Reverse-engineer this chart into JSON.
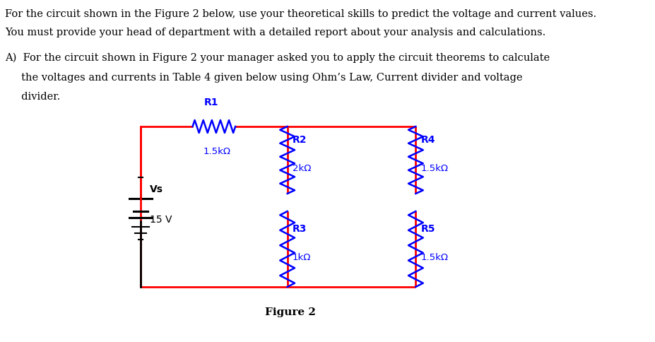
{
  "title_text": "Figure 2",
  "paragraph1": "For the circuit shown in the Figure 2 below, use your theoretical skills to predict the voltage and current values.",
  "paragraph2": "You must provide your head of department with a detailed report about your analysis and calculations.",
  "bullet_line1": "A)  For the circuit shown in Figure 2 your manager asked you to apply the circuit theorems to calculate",
  "bullet_line2": "     the voltages and currents in Table 4 given below using Ohm’s Law, Current divider and voltage",
  "bullet_line3": "     divider.",
  "R1_label": "R1",
  "R1_value": "1.5kΩ",
  "R2_label": "R2",
  "R2_value": "2kΩ",
  "R3_label": "R3",
  "R3_value": "1kΩ",
  "R4_label": "R4",
  "R4_value": "1.5kΩ",
  "R5_label": "R5",
  "R5_value": "1.5kΩ",
  "Vs_label": "Vs",
  "Vs_value": "15 V",
  "circuit_color": "#ff0000",
  "component_color": "#0000ff",
  "text_color": "#000000",
  "bg_color": "#ffffff"
}
